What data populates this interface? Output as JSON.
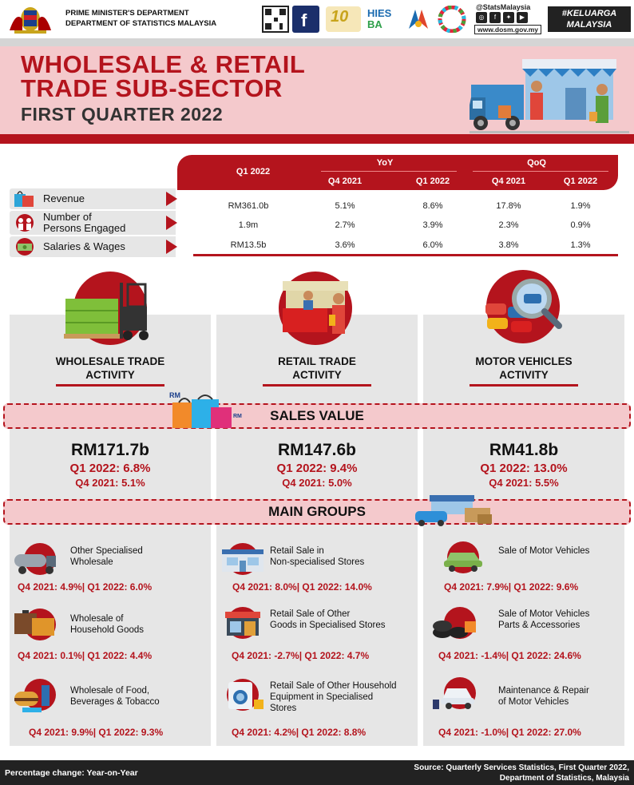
{
  "header": {
    "dept_line1": "PRIME MINISTER'S DEPARTMENT",
    "dept_line2": "DEPARTMENT OF STATISTICS MALAYSIA",
    "social_handle": "@StatsMalaysia",
    "website": "www.dosm.gov.my",
    "keluarga_line1": "#KELUARGA",
    "keluarga_line2": "MALAYSIA",
    "hies_line1": "HIES",
    "hies_line2": "BA"
  },
  "title": {
    "line1": "WHOLESALE & RETAIL",
    "line2": "TRADE SUB-SECTOR",
    "line3": "FIRST QUARTER 2022"
  },
  "summary_table": {
    "col_period": "Q1 2022",
    "yoy": "YoY",
    "qoq": "QoQ",
    "sub_headers": [
      "Q4 2021",
      "Q1 2022",
      "Q4 2021",
      "Q1 2022"
    ],
    "rows": [
      {
        "label": "Revenue",
        "value": "RM361.0b",
        "yoy_q4": "5.1%",
        "yoy_q1": "8.6%",
        "qoq_q4": "17.8%",
        "qoq_q1": "1.9%"
      },
      {
        "label_line1": "Number of",
        "label_line2": "Persons Engaged",
        "value": "1.9m",
        "yoy_q4": "2.7%",
        "yoy_q1": "3.9%",
        "qoq_q4": "2.3%",
        "qoq_q1": "0.9%"
      },
      {
        "label": "Salaries & Wages",
        "value": "RM13.5b",
        "yoy_q4": "3.6%",
        "yoy_q1": "6.0%",
        "qoq_q4": "3.8%",
        "qoq_q1": "1.3%"
      }
    ]
  },
  "activities": [
    {
      "title_line1": "WHOLESALE TRADE",
      "title_line2": "ACTIVITY",
      "sales": "RM171.7b",
      "q1": "Q1 2022: 6.8%",
      "q4": "Q4 2021: 5.1%"
    },
    {
      "title_line1": "RETAIL TRADE",
      "title_line2": "ACTIVITY",
      "sales": "RM147.6b",
      "q1": "Q1 2022: 9.4%",
      "q4": "Q4 2021: 5.0%"
    },
    {
      "title_line1": "MOTOR VEHICLES",
      "title_line2": "ACTIVITY",
      "sales": "RM41.8b",
      "q1": "Q1 2022: 13.0%",
      "q4": "Q4 2021: 5.5%"
    }
  ],
  "bands": {
    "sales_value": "SALES VALUE",
    "main_groups": "MAIN GROUPS",
    "rm_tag": "RM"
  },
  "groups": [
    [
      {
        "name_line1": "Other Specialised",
        "name_line2": "Wholesale",
        "name_line3": "",
        "vals": "Q4 2021: 4.9%| Q1 2022: 6.0%"
      },
      {
        "name_line1": "Wholesale of",
        "name_line2": "Household Goods",
        "name_line3": "",
        "vals": "Q4 2021: 0.1%| Q1 2022: 4.4%"
      },
      {
        "name_line1": "Wholesale of Food,",
        "name_line2": "Beverages & Tobacco",
        "name_line3": "",
        "vals": "Q4 2021: 9.9%| Q1 2022: 9.3%"
      }
    ],
    [
      {
        "name_line1": "Retail Sale in",
        "name_line2": "Non-specialised Stores",
        "name_line3": "",
        "vals": "Q4 2021: 8.0%| Q1 2022: 14.0%"
      },
      {
        "name_line1": "Retail Sale of Other",
        "name_line2": "Goods in Specialised Stores",
        "name_line3": "",
        "vals": "Q4 2021: -2.7%| Q1 2022: 4.7%"
      },
      {
        "name_line1": "Retail Sale of Other Household",
        "name_line2": "Equipment in Specialised",
        "name_line3": "Stores",
        "vals": "Q4 2021: 4.2%| Q1 2022: 8.8%"
      }
    ],
    [
      {
        "name_line1": "Sale of Motor Vehicles",
        "name_line2": "",
        "name_line3": "",
        "vals": "Q4 2021: 7.9%| Q1 2022: 9.6%"
      },
      {
        "name_line1": "Sale of Motor Vehicles",
        "name_line2": "Parts & Accessories",
        "name_line3": "",
        "vals": "Q4 2021: -1.4%| Q1 2022: 24.6%"
      },
      {
        "name_line1": "Maintenance & Repair",
        "name_line2": "of Motor Vehicles",
        "name_line3": "",
        "vals": "Q4 2021: -1.0%| Q1 2022: 27.0%"
      }
    ]
  ],
  "footer": {
    "left": "Percentage change: Year-on-Year",
    "right_line1": "Source: Quarterly Services Statistics, First Quarter 2022,",
    "right_line2": "Department of Statistics, Malaysia"
  },
  "colors": {
    "accent": "#b4141d",
    "banner": "#f4c9cc",
    "panel": "#e6e6e6",
    "dark": "#222222"
  }
}
